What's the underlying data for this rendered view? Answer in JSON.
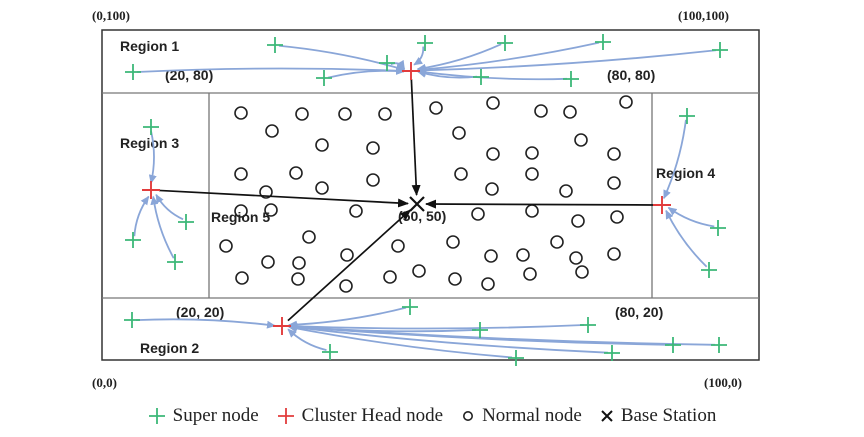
{
  "corners": {
    "top_left": "(0,100)",
    "top_right": "(100,100)",
    "bottom_left": "(0,0)",
    "bottom_right": "(100,0)"
  },
  "regions": {
    "r1": "Region 1",
    "r2": "Region 2",
    "r3": "Region 3",
    "r4": "Region 4",
    "r5": "Region 5"
  },
  "coords": {
    "c2080": "(20, 80)",
    "c8080": "(80, 80)",
    "c5050": "(50, 50)",
    "c2020": "(20, 20)",
    "c8020": "(80, 20)"
  },
  "legend": {
    "super": "Super node",
    "cluster": "Cluster Head  node",
    "normal": "Normal node",
    "base": "Base Station"
  },
  "colors": {
    "super_node": "#3cb878",
    "cluster_head": "#e23c3c",
    "normal_node": "#222222",
    "base_station": "#111111",
    "arrow_to_ch": "#8aa6d8",
    "arrow_to_bs": "#111111",
    "frame": "#333333",
    "divider": "#777777"
  }
}
